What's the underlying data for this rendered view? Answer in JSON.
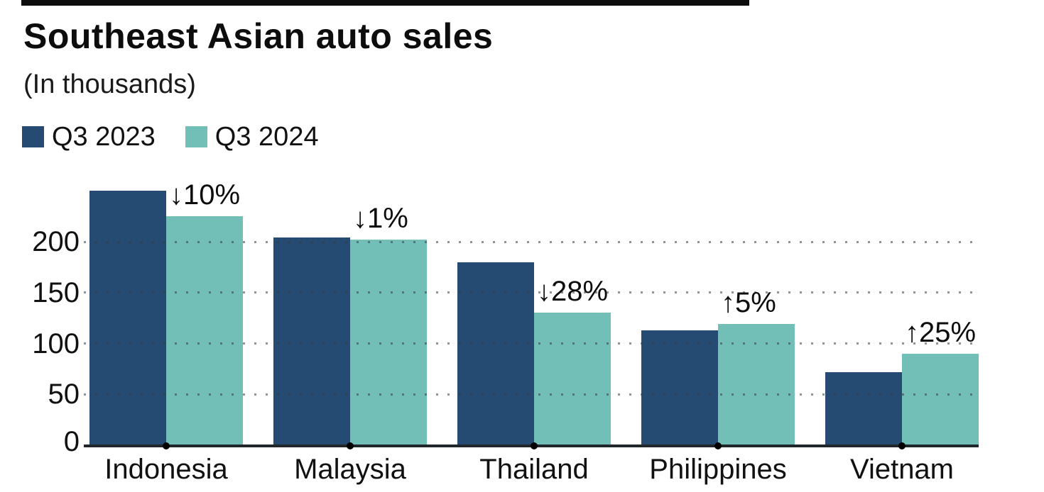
{
  "header": {
    "title": "Southeast Asian auto sales",
    "subtitle": "(In thousands)"
  },
  "legend": [
    {
      "label": "Q3 2023",
      "color": "#254b73"
    },
    {
      "label": "Q3 2024",
      "color": "#72bfb8"
    }
  ],
  "chart_data": {
    "type": "bar",
    "title": "Southeast Asian auto sales",
    "subtitle": "(In thousands)",
    "unit": "thousands of vehicles",
    "categories": [
      "Indonesia",
      "Malaysia",
      "Thailand",
      "Philippines",
      "Vietnam"
    ],
    "series": [
      {
        "name": "Q3 2023",
        "color": "#254b73",
        "values": [
          250,
          204,
          180,
          113,
          72
        ]
      },
      {
        "name": "Q3 2024",
        "color": "#72bfb8",
        "values": [
          225,
          202,
          130,
          119,
          90
        ]
      }
    ],
    "annotations": [
      {
        "category": "Indonesia",
        "text": "↓10%",
        "direction": "down"
      },
      {
        "category": "Malaysia",
        "text": "↓1%",
        "direction": "down"
      },
      {
        "category": "Thailand",
        "text": "↓28%",
        "direction": "down"
      },
      {
        "category": "Philippines",
        "text": "↑5%",
        "direction": "up"
      },
      {
        "category": "Vietnam",
        "text": "↑25%",
        "direction": "up"
      }
    ],
    "yticks": [
      0,
      50,
      100,
      150,
      200
    ],
    "ylim": [
      0,
      260
    ],
    "grid": "horizontal-dotted",
    "grid_color": "#9aa2a8",
    "axis_color": "#21262b",
    "legend_position": "top-left"
  }
}
